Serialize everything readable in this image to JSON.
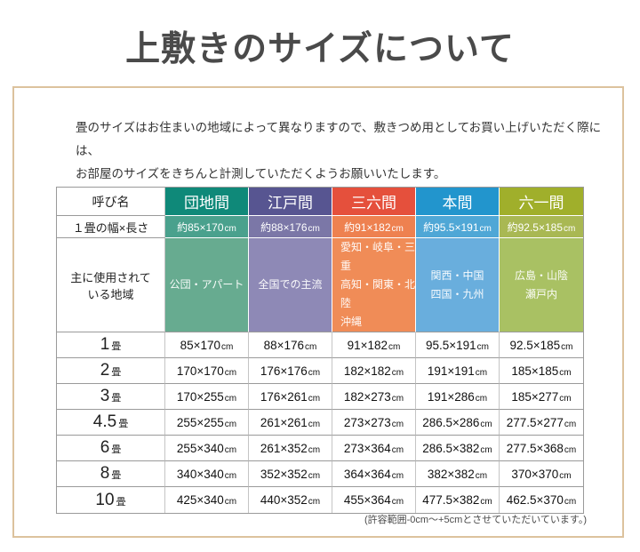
{
  "title": "上敷きのサイズについて",
  "description": [
    "畳のサイズはお住まいの地域によって異なりますので、敷きつめ用としてお買い上げいただく際には、",
    "お部屋のサイズをきちんと計測していただくようお願いいたします。"
  ],
  "footnote": "(許容範囲-0cm～+5cmとさせていただいています。)",
  "colors": {
    "panel_border": "#dcc29d",
    "title_text": "#4a4a4a",
    "grid_dark": "#9a9a9a",
    "grid_light": "#c4c4c4"
  },
  "table": {
    "corner_header": "呼び名",
    "unit_label": "cm",
    "tatami_unit": "畳",
    "row_headers": {
      "size": "１畳の幅×長さ",
      "region": [
        "主に使用されて",
        "いる地域"
      ]
    },
    "columns": [
      {
        "name": "団地間",
        "header_color": "#0f8979",
        "size_color": "#4aa18d",
        "region_color": "#67ab90",
        "size": "約85×170cm",
        "regions": [
          "公団・アパート"
        ]
      },
      {
        "name": "江戸間",
        "header_color": "#575591",
        "size_color": "#7b77a7",
        "region_color": "#8e89b6",
        "size": "約88×176cm",
        "regions": [
          "全国での主流"
        ]
      },
      {
        "name": "三六間",
        "header_color": "#e5503c",
        "size_color": "#ee8150",
        "region_color": "#f08c57",
        "size": "約91×182cm",
        "regions": [
          "愛知・岐阜・三重",
          "高知・関東・北陸",
          "沖縄"
        ]
      },
      {
        "name": "本間",
        "header_color": "#2295cd",
        "size_color": "#4fa7d6",
        "region_color": "#69aedd",
        "size": "約95.5×191cm",
        "regions": [
          "関西・中国",
          "四国・九州"
        ]
      },
      {
        "name": "六一間",
        "header_color": "#a0af2b",
        "size_color": "#a9b853",
        "region_color": "#a9c163",
        "size": "約92.5×185cm",
        "regions": [
          "広島・山陰",
          "瀬戸内"
        ]
      }
    ],
    "rows": [
      {
        "label": "1",
        "values": [
          "85×170cm",
          "88×176cm",
          "91×182cm",
          "95.5×191cm",
          "92.5×185cm"
        ]
      },
      {
        "label": "2",
        "values": [
          "170×170cm",
          "176×176cm",
          "182×182cm",
          "191×191cm",
          "185×185cm"
        ]
      },
      {
        "label": "3",
        "values": [
          "170×255cm",
          "176×261cm",
          "182×273cm",
          "191×286cm",
          "185×277cm"
        ]
      },
      {
        "label": "4.5",
        "values": [
          "255×255cm",
          "261×261cm",
          "273×273cm",
          "286.5×286cm",
          "277.5×277cm"
        ]
      },
      {
        "label": "6",
        "values": [
          "255×340cm",
          "261×352cm",
          "273×364cm",
          "286.5×382cm",
          "277.5×368cm"
        ]
      },
      {
        "label": "8",
        "values": [
          "340×340cm",
          "352×352cm",
          "364×364cm",
          "382×382cm",
          "370×370cm"
        ]
      },
      {
        "label": "10",
        "values": [
          "425×340cm",
          "440×352cm",
          "455×364cm",
          "477.5×382cm",
          "462.5×370cm"
        ]
      }
    ]
  },
  "chart_data": {
    "type": "table",
    "title": "上敷きのサイズについて",
    "columns": [
      "呼び名",
      "団地間",
      "江戸間",
      "三六間",
      "本間",
      "六一間"
    ],
    "rows": [
      [
        "1畳の幅×長さ",
        "約85×170cm",
        "約88×176cm",
        "約91×182cm",
        "約95.5×191cm",
        "約92.5×185cm"
      ],
      [
        "主に使用されている地域",
        "公団・アパート",
        "全国での主流",
        "愛知・岐阜・三重 高知・関東・北陸 沖縄",
        "関西・中国 四国・九州",
        "広島・山陰 瀬戸内"
      ],
      [
        "1畳",
        "85×170cm",
        "88×176cm",
        "91×182cm",
        "95.5×191cm",
        "92.5×185cm"
      ],
      [
        "2畳",
        "170×170cm",
        "176×176cm",
        "182×182cm",
        "191×191cm",
        "185×185cm"
      ],
      [
        "3畳",
        "170×255cm",
        "176×261cm",
        "182×273cm",
        "191×286cm",
        "185×277cm"
      ],
      [
        "4.5畳",
        "255×255cm",
        "261×261cm",
        "273×273cm",
        "286.5×286cm",
        "277.5×277cm"
      ],
      [
        "6畳",
        "255×340cm",
        "261×352cm",
        "273×364cm",
        "286.5×382cm",
        "277.5×368cm"
      ],
      [
        "8畳",
        "340×340cm",
        "352×352cm",
        "364×364cm",
        "382×382cm",
        "370×370cm"
      ],
      [
        "10畳",
        "425×340cm",
        "440×352cm",
        "455×364cm",
        "477.5×382cm",
        "462.5×370cm"
      ]
    ]
  }
}
